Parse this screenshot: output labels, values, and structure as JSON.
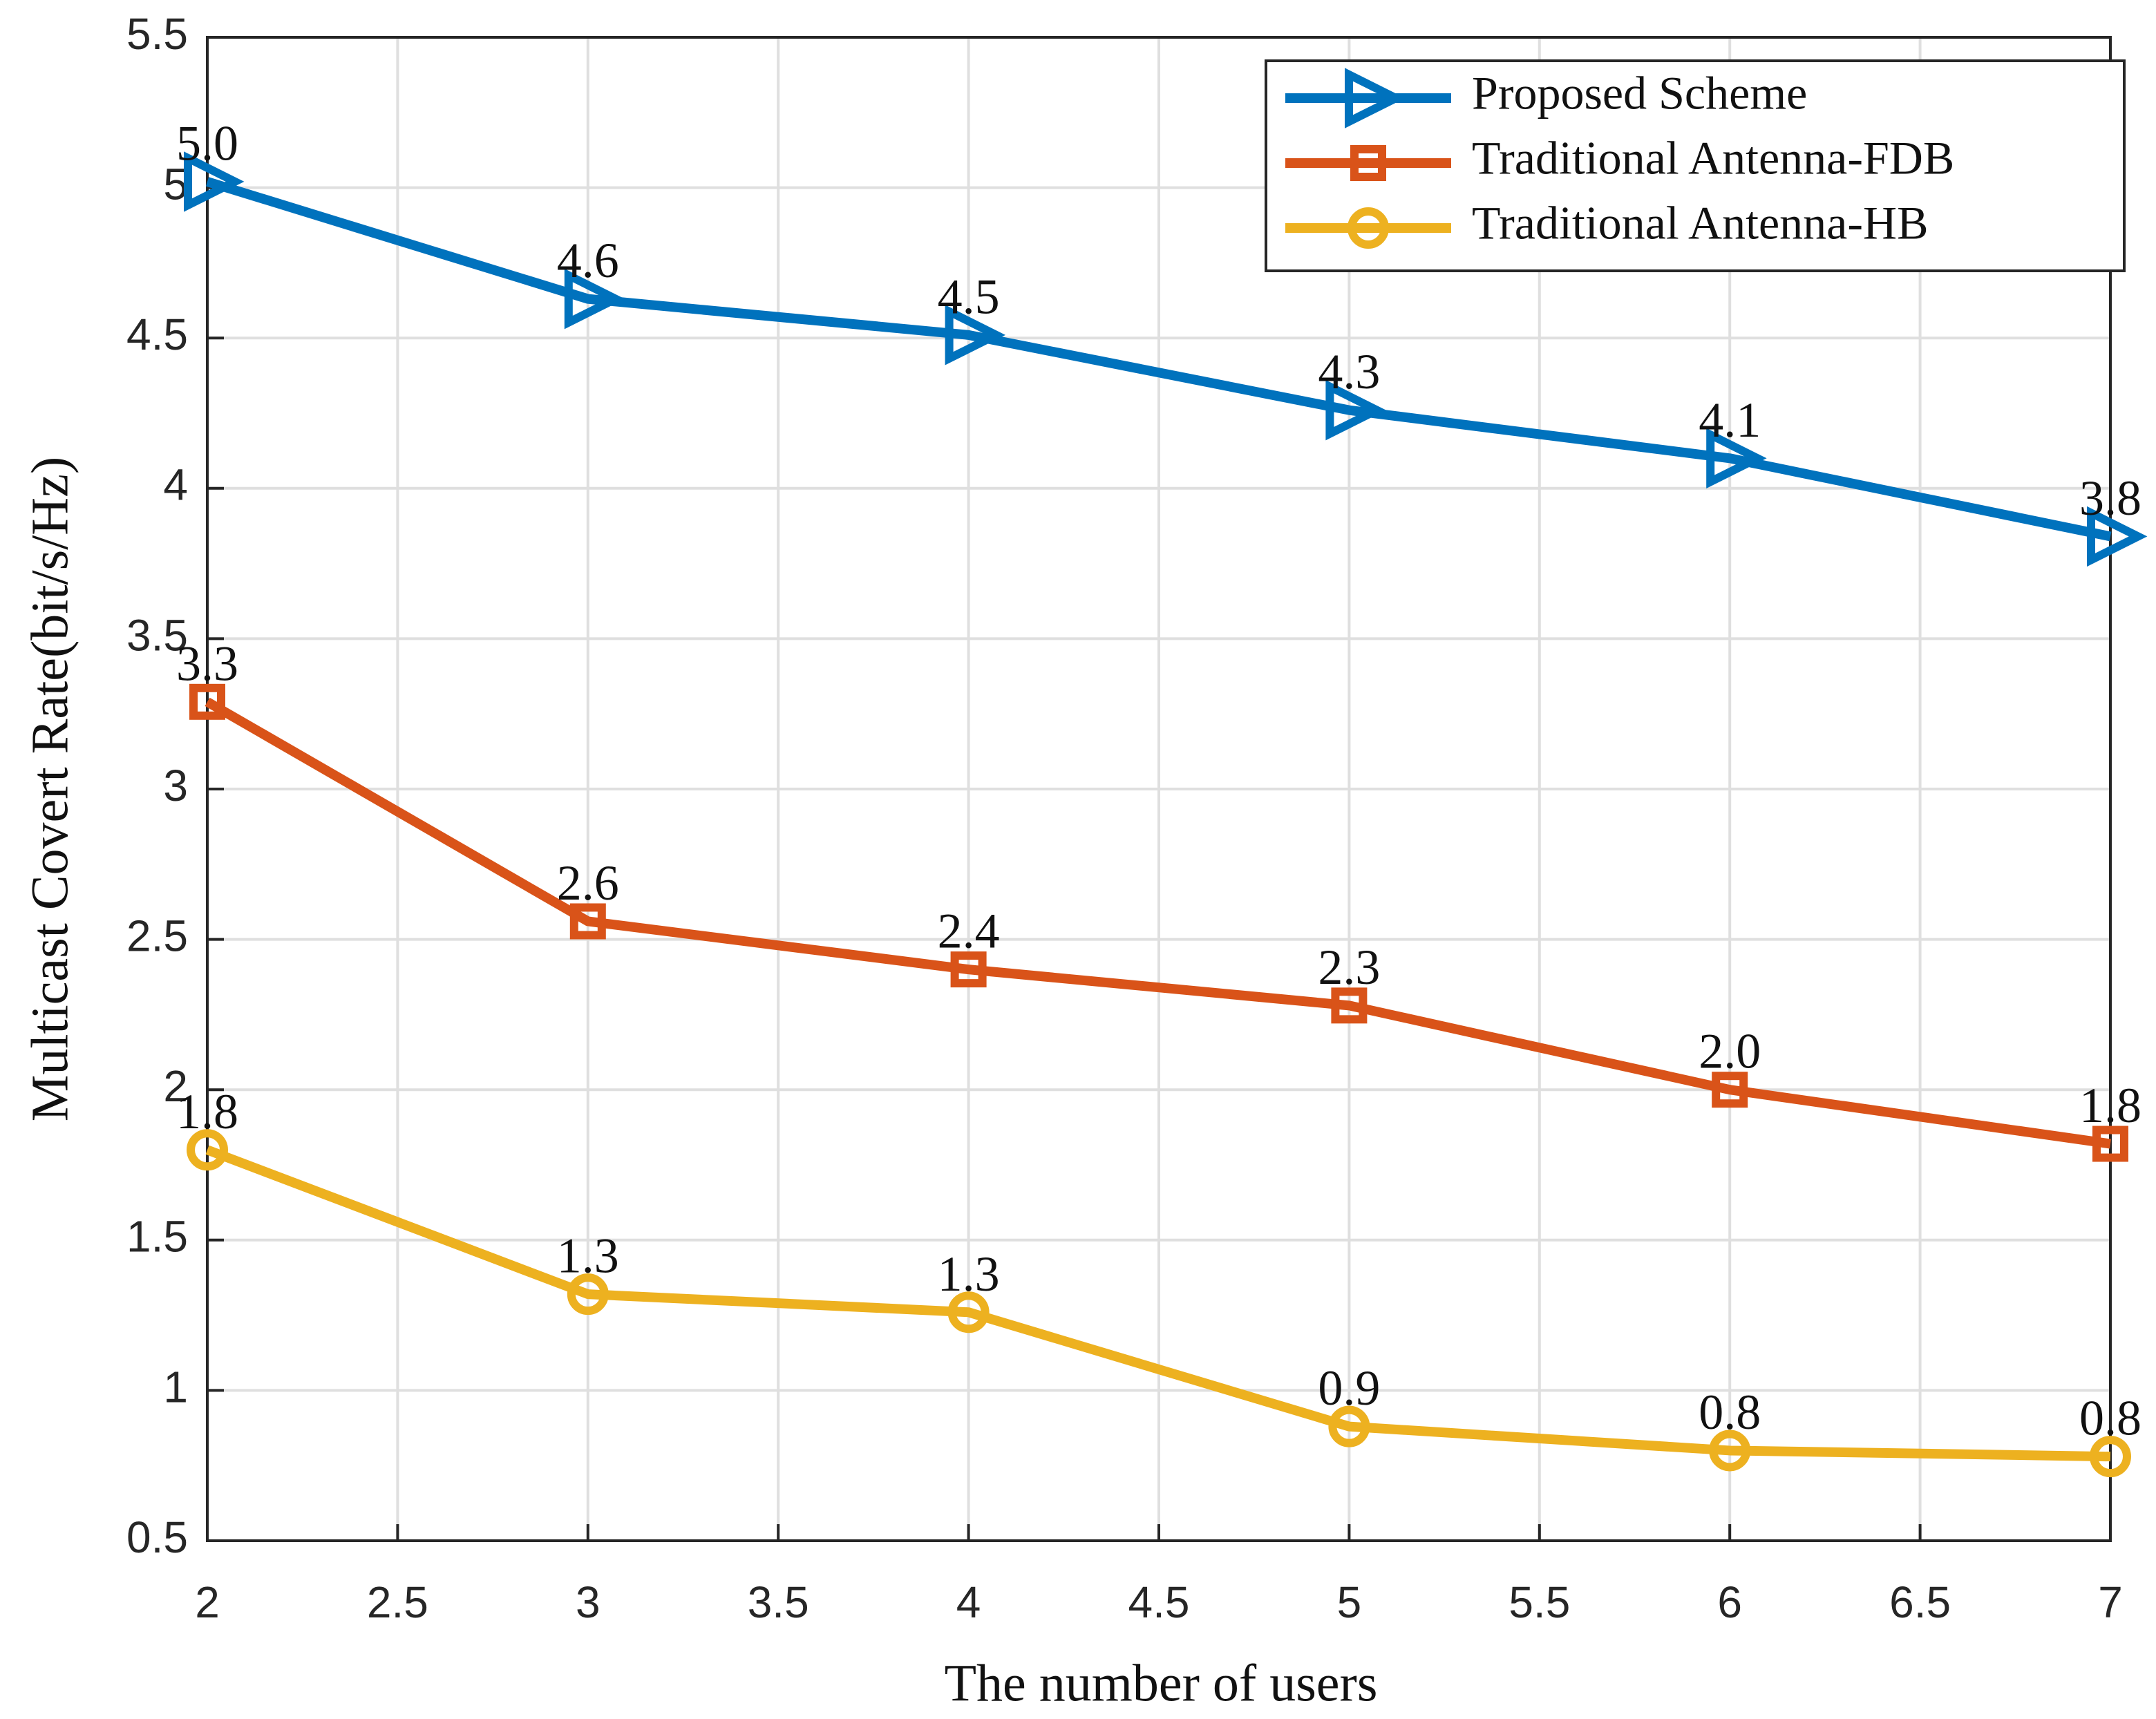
{
  "chart_data": {
    "type": "line",
    "x_label": "The number of users",
    "y_label": "Multicast Covert Rate(bit/s/Hz)",
    "x": [
      2,
      3,
      4,
      5,
      6,
      7
    ],
    "series": [
      {
        "name": "Proposed Scheme",
        "color": "#0072bd",
        "marker": "triangle-right",
        "values": [
          5.02,
          4.63,
          4.51,
          4.26,
          4.1,
          3.84
        ],
        "value_labels": [
          "5.0",
          "4.6",
          "4.5",
          "4.3",
          "4.1",
          "3.8"
        ]
      },
      {
        "name": "Traditional Antenna-FDB",
        "color": "#d95319",
        "marker": "square",
        "values": [
          3.29,
          2.56,
          2.4,
          2.28,
          2.0,
          1.82
        ],
        "value_labels": [
          "3.3",
          "2.6",
          "2.4",
          "2.3",
          "2.0",
          "1.8"
        ]
      },
      {
        "name": "Traditional Antenna-HB",
        "color": "#edb120",
        "marker": "circle",
        "values": [
          1.8,
          1.32,
          1.26,
          0.88,
          0.8,
          0.78
        ],
        "value_labels": [
          "1.8",
          "1.3",
          "1.3",
          "0.9",
          "0.8",
          "0.8"
        ]
      }
    ],
    "xlim": [
      2,
      7
    ],
    "xticks": [
      2,
      2.5,
      3,
      3.5,
      4,
      4.5,
      5,
      5.5,
      6,
      6.5,
      7
    ],
    "ylim": [
      0.5,
      5.5
    ],
    "yticks": [
      0.5,
      1,
      1.5,
      2,
      2.5,
      3,
      3.5,
      4,
      4.5,
      5,
      5.5
    ],
    "grid": true,
    "legend": "top-right"
  }
}
